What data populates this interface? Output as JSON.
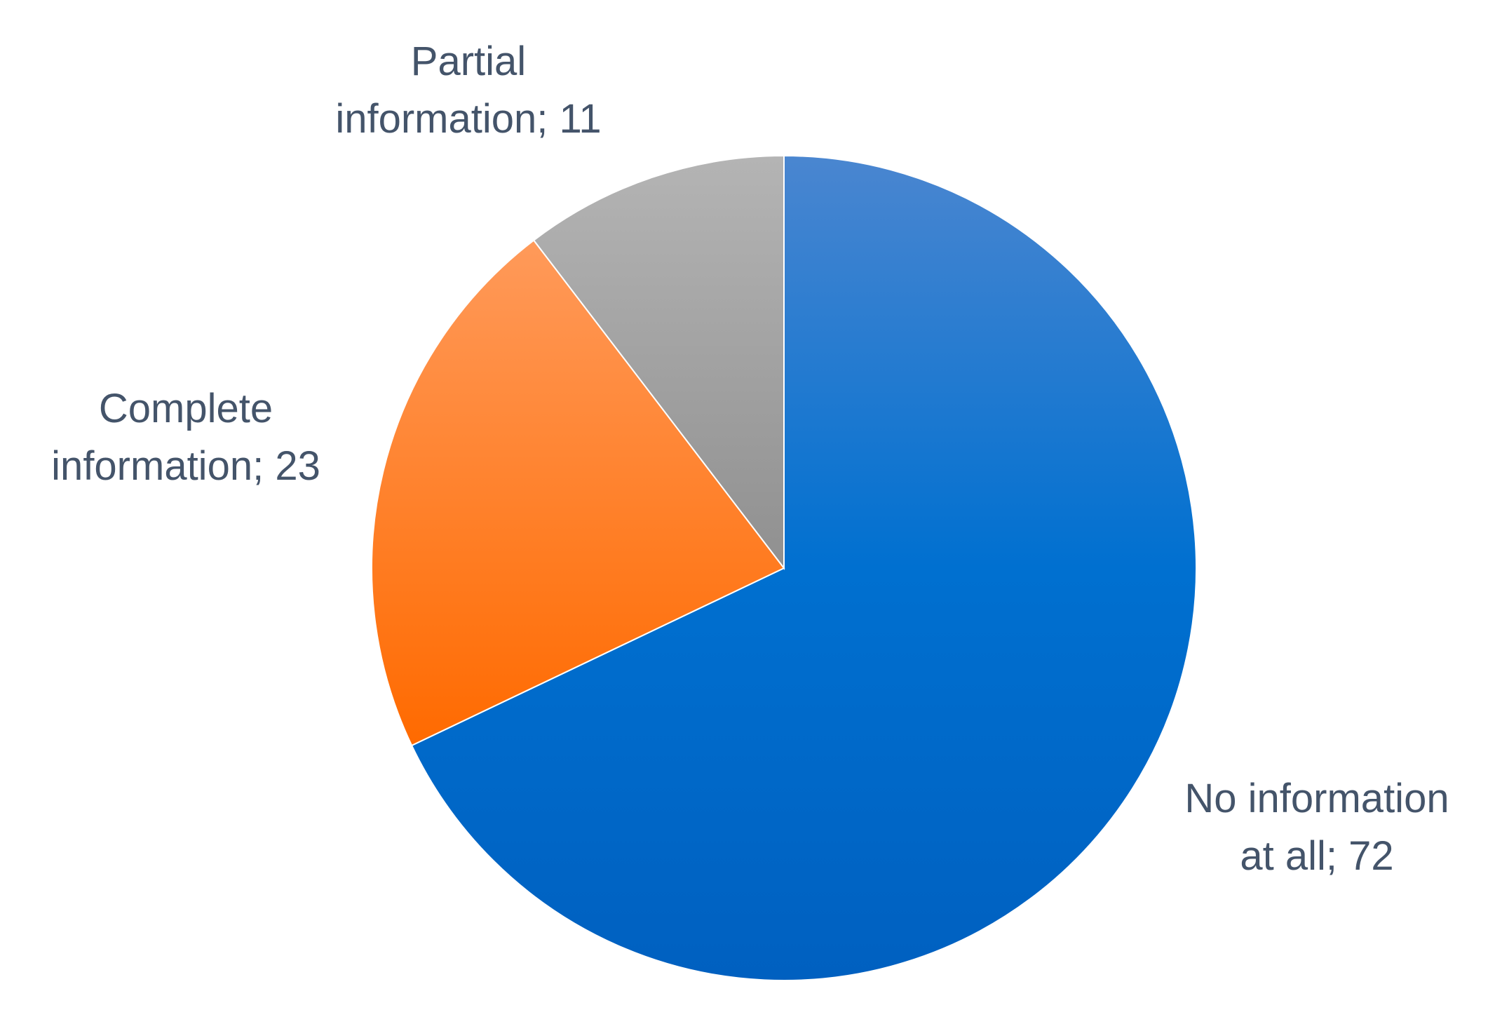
{
  "chart_data": {
    "type": "pie",
    "title": "",
    "categories": [
      "No information at all",
      "Complete information",
      "Partial information"
    ],
    "values": [
      72,
      23,
      11
    ],
    "start_angle_deg": 0,
    "direction": "clockwise",
    "colors": [
      "#0066cc",
      "#ff7a14",
      "#a6a6a6"
    ],
    "labels": [
      {
        "lines": [
          "No information",
          "at all; 72"
        ]
      },
      {
        "lines": [
          "Complete",
          "information; 23"
        ]
      },
      {
        "lines": [
          "Partial",
          "information; 11"
        ]
      }
    ],
    "legend": "none"
  }
}
